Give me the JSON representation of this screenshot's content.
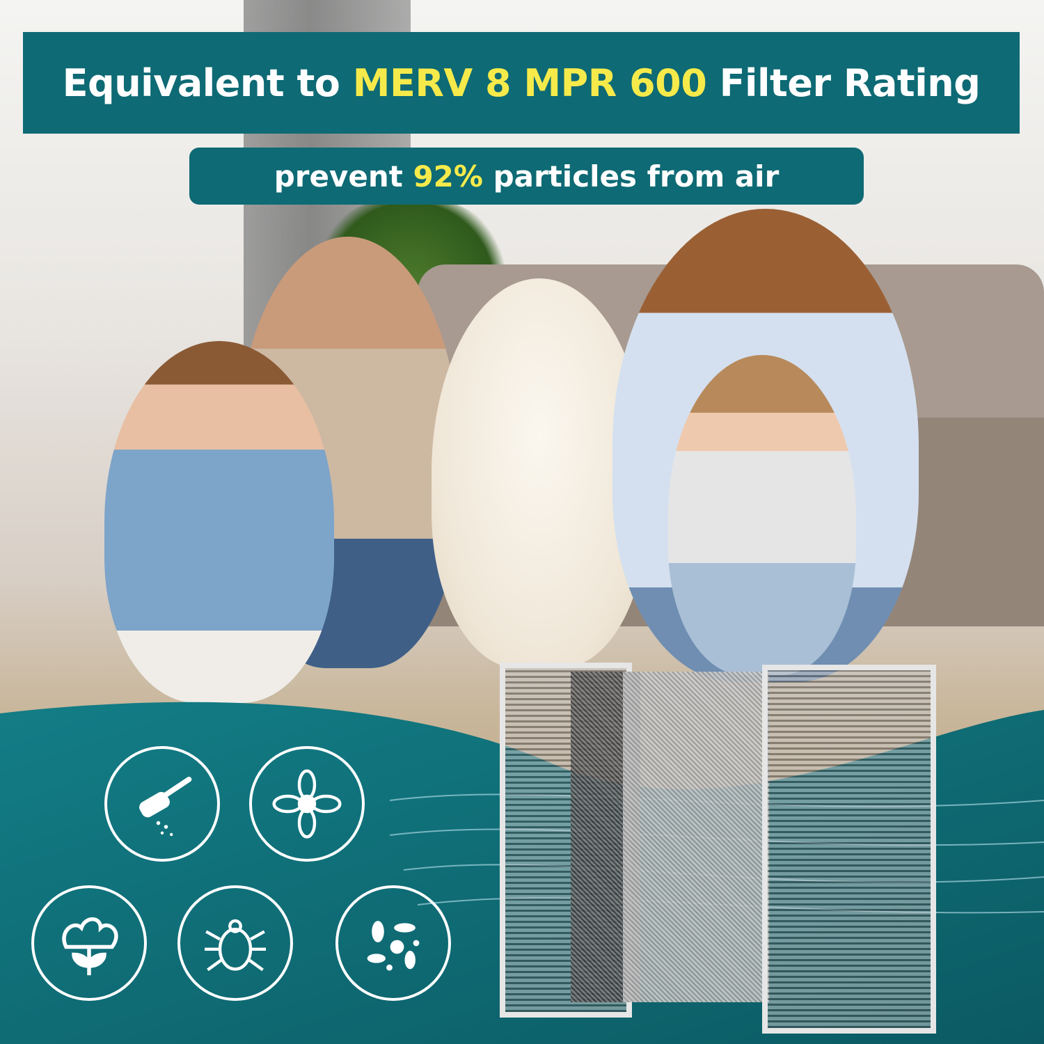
{
  "header": {
    "prefix": "Equivalent to",
    "highlight": "MERV 8 MPR 600",
    "suffix": "Filter Rating"
  },
  "subheader": {
    "prefix": "prevent",
    "highlight": "92%",
    "suffix": "particles from air"
  },
  "colors": {
    "banner": "#0e6a74",
    "highlight": "#f6ea4b",
    "text": "#ffffff"
  },
  "icons": [
    "dust-icon",
    "pollen-flower-icon",
    "cotton-lint-icon",
    "dust-mite-icon",
    "bacteria-icon"
  ]
}
